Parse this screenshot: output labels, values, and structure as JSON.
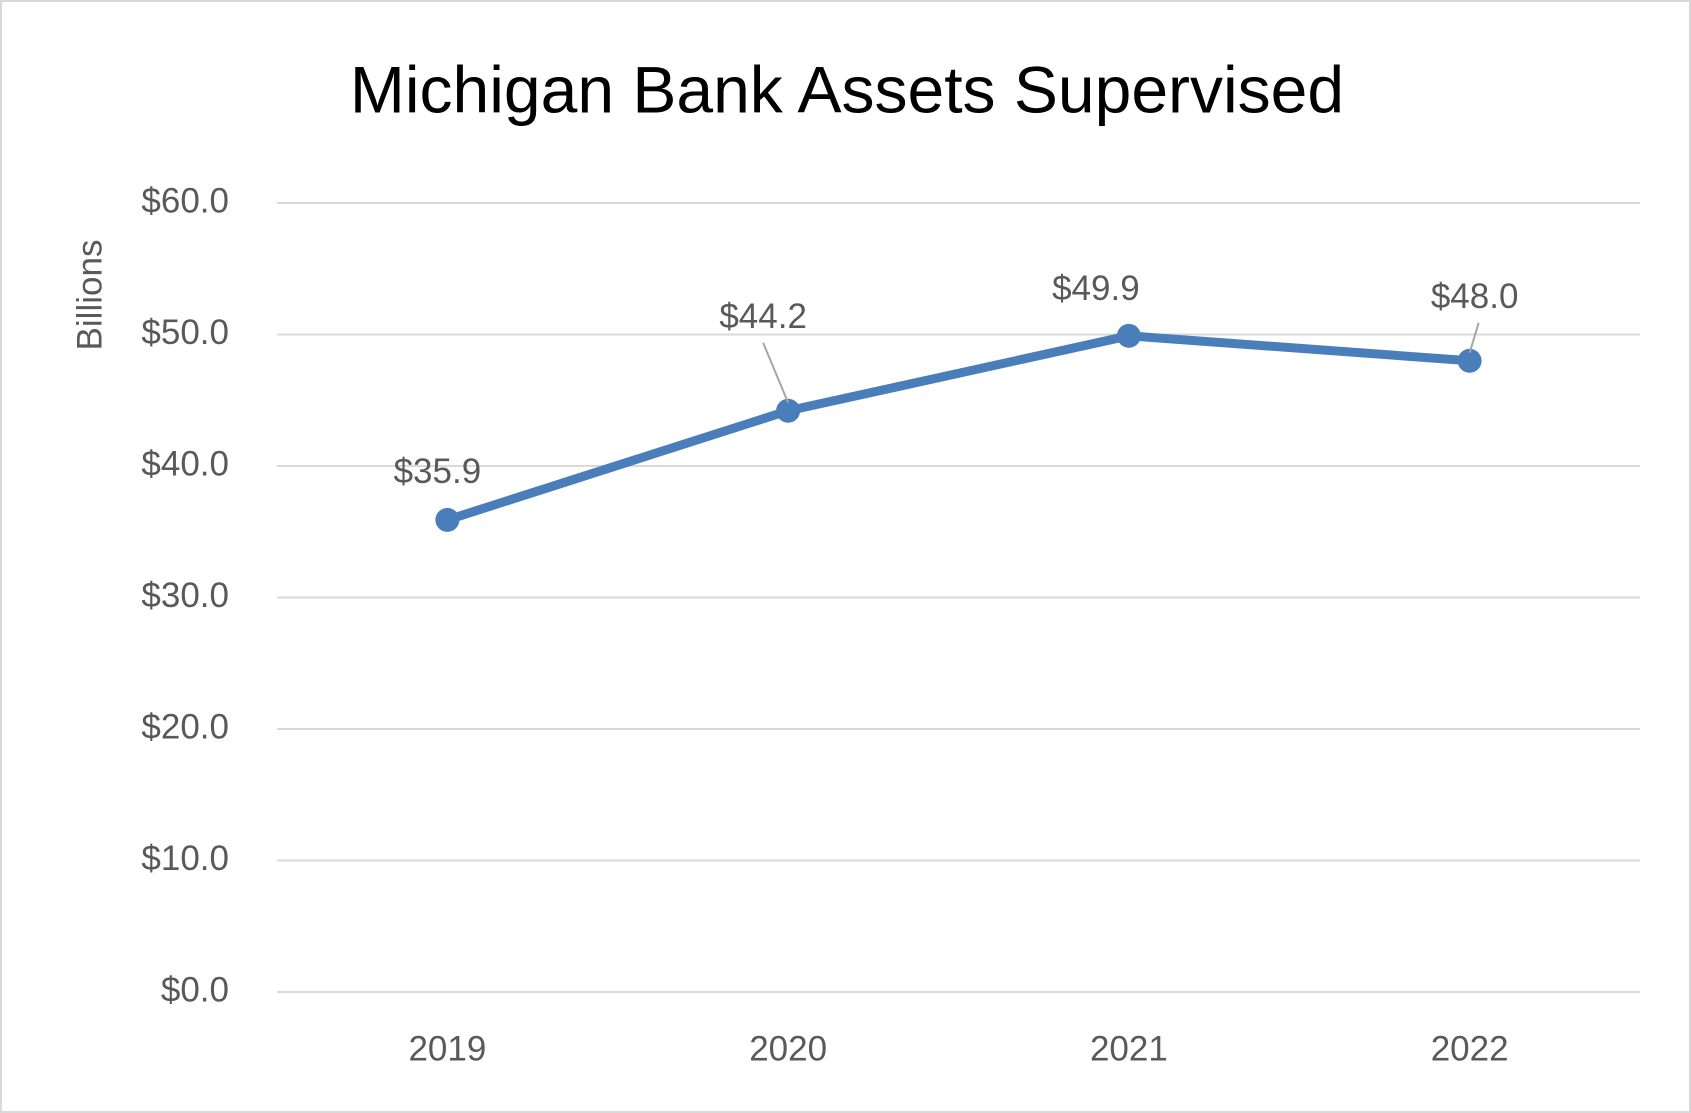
{
  "chart_data": {
    "type": "line",
    "title": "Michigan Bank Assets Supervised",
    "y_label": "Billions",
    "categories": [
      "2019",
      "2020",
      "2021",
      "2022"
    ],
    "values": [
      35.9,
      44.2,
      49.9,
      48.0
    ],
    "value_labels": [
      "$35.9",
      "$44.2",
      "$49.9",
      "$48.0"
    ],
    "color": "#4a7ebb",
    "ylim": [
      0,
      60
    ],
    "yticks": [
      {
        "value": 0,
        "label": "$0.0"
      },
      {
        "value": 10,
        "label": "$10.0"
      },
      {
        "value": 20,
        "label": "$20.0"
      },
      {
        "value": 30,
        "label": "$30.0"
      },
      {
        "value": 40,
        "label": "$40.0"
      },
      {
        "value": 50,
        "label": "$50.0"
      },
      {
        "value": 60,
        "label": "$60.0"
      }
    ],
    "grid": true
  }
}
